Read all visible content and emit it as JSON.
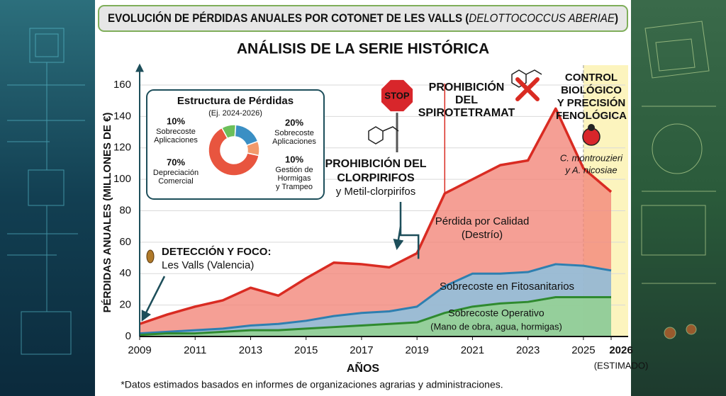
{
  "chart_data": [
    {
      "type": "area",
      "title": [
        "EVOLUCIÓN DE PÉRDIDAS ANUALES POR COTONET DE LES VALLS (",
        "DELOTTOCOCCUS ABERIAE",
        ")"
      ],
      "subtitle": "ANÁLISIS DE LA SERIE HISTÓRICA",
      "y_label": "PÉRDIDAS ANUALES (MILLONES DE €)",
      "x_label": "AÑOS",
      "x_note": "(ESTIMADO)",
      "footnote": "*Datos estimados basados en informes de organizaciones agrarias y administraciones.",
      "x": [
        2009,
        2010,
        2011,
        2012,
        2013,
        2014,
        2015,
        2016,
        2017,
        2018,
        2019,
        2020,
        2021,
        2022,
        2023,
        2024,
        2025,
        2026
      ],
      "xlim": [
        2009,
        2026
      ],
      "xticks": [
        2009,
        2011,
        2013,
        2015,
        2017,
        2019,
        2021,
        2023,
        2025,
        2026
      ],
      "ylim": [
        0,
        160
      ],
      "yticks": [
        0,
        20,
        40,
        60,
        80,
        100,
        120,
        140,
        160
      ],
      "grid": true,
      "highlight_x": [
        2025,
        2026
      ],
      "vline_x": 2020,
      "series": [
        {
          "name": [
            "Pérdida por Calidad",
            "(Destrío)"
          ],
          "color": "#d92b22",
          "fill": "#f2877a",
          "values": [
            8,
            14,
            19,
            23,
            31,
            26,
            37,
            47,
            46,
            44,
            53,
            91,
            100,
            109,
            112,
            145,
            107,
            92
          ]
        },
        {
          "name": [
            "Sobrecoste en Fitosanitarios"
          ],
          "color": "#2e7fb0",
          "fill": "#86c3e3",
          "values": [
            2,
            3,
            4,
            5,
            7,
            8,
            10,
            13,
            15,
            16,
            19,
            32,
            40,
            40,
            41,
            46,
            45,
            42
          ]
        },
        {
          "name": [
            "Sobrecoste Operativo",
            "(Mano de obra, agua, hormigas)"
          ],
          "color": "#2f8a2f",
          "fill": "#93d38c",
          "values": [
            1,
            2,
            2,
            3,
            4,
            4,
            5,
            6,
            7,
            8,
            9,
            15,
            19,
            21,
            22,
            25,
            25,
            25
          ]
        }
      ],
      "annotations": [
        {
          "lines": [
            "DETECCIÓN Y FOCO:",
            "Les Valls (Valencia)"
          ]
        },
        {
          "lines": [
            "PROHIBICIÓN DEL",
            "CLORPIRIFOS",
            "y Metil-clorpirifos"
          ]
        },
        {
          "lines": [
            "PROHIBICIÓN",
            "DEL",
            "SPIROTETRAMAT"
          ]
        },
        {
          "lines": [
            "CONTROL",
            "BIOLÓGICO",
            "Y PRECISIÓN",
            "FENOLÓGICA",
            "C. montrouzieri",
            "y A. nicosiae"
          ]
        },
        {
          "lines": [
            "STOP"
          ]
        }
      ]
    },
    {
      "type": "pie",
      "title": "Estructura de Pérdidas",
      "subtitle": "(Ej. 2024-2026)",
      "values": [
        10,
        20,
        10,
        70
      ],
      "value_labels": [
        "10%",
        "20%",
        "10%",
        "70%"
      ],
      "labels": [
        [
          "Sobrecoste",
          "Aplicaciones"
        ],
        [
          "Sobrecoste",
          "Aplicaciones"
        ],
        [
          "Gestión de",
          "Hormigas",
          "y Trampeo"
        ],
        [
          "Depreciación",
          "Comercial"
        ]
      ],
      "colors": [
        "#6cbf5a",
        "#3a8fc4",
        "#f29a6b",
        "#e8553f"
      ]
    }
  ]
}
